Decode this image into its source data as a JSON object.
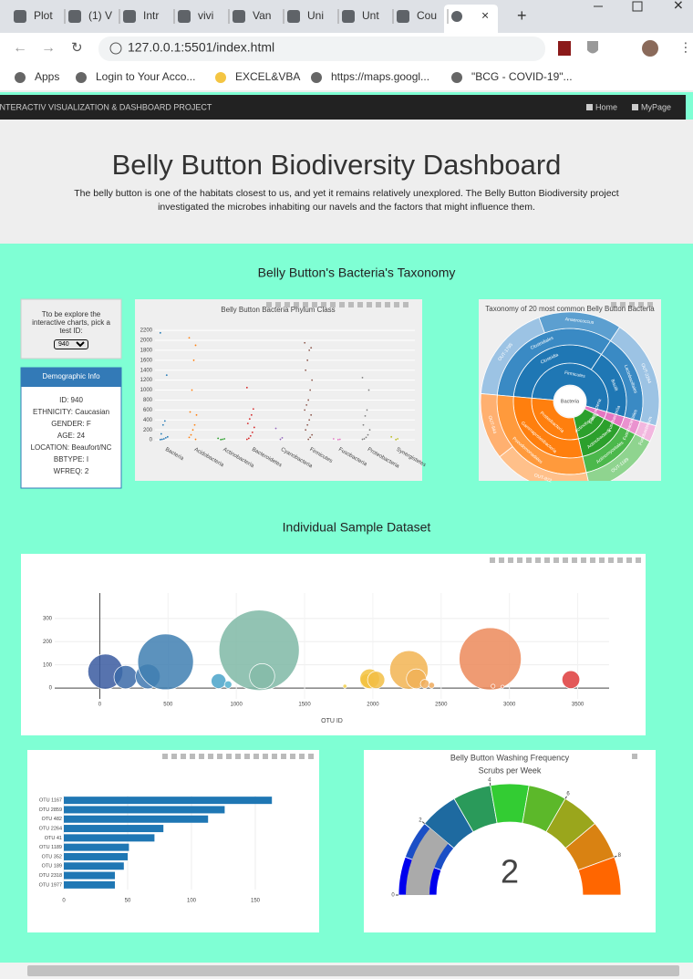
{
  "browser": {
    "tabs": [
      "Plot",
      "(1) V",
      "Intr",
      "vivi",
      "Van",
      "Uni",
      "Unt",
      "Cou"
    ],
    "url": "127.0.0.1:5501/index.html",
    "bookmarks": [
      "Apps",
      "Login to Your Acco...",
      "EXCEL&VBA",
      "https://maps.googl...",
      "\"BCG - COVID-19\"..."
    ]
  },
  "navbar": {
    "brand": "INTERACTIV VISUALIZATION & DASHBOARD PROJECT",
    "links": [
      "Home",
      "MyPage"
    ]
  },
  "header": {
    "title": "Belly Button Biodiversity Dashboard",
    "description": "The belly button is one of the habitats closest to us, and yet it remains relatively unexplored. The Belly Button Biodiversity project investigated the microbes inhabiting our navels and the factors that might influence them."
  },
  "taxonomy_section": {
    "title": "Belly Button's Bacteria's Taxonomy",
    "selector": {
      "prompt": "Tto be explore the interactive charts, pick a test ID:",
      "selected": "940"
    },
    "demographics": {
      "title": "Demographic Info",
      "lines": [
        "ID: 940",
        "ETHNICITY: Caucasian",
        "GENDER: F",
        "AGE: 24",
        "LOCATION: Beaufort/NC",
        "BBTYPE: I",
        "WFREQ: 2"
      ]
    },
    "box_chart": {
      "type": "box",
      "title": "Belly Button Bacteria Phylum Class",
      "categories": [
        "Bacteria",
        "Acidobacteria",
        "Actinobacteria",
        "Bacteroidetes",
        "Cyanobacteria",
        "Firmicutes",
        "Fusobacteria",
        "Proteobacteria",
        "Synergistetes"
      ],
      "colors": [
        "#1f77b4",
        "#ff7f0e",
        "#2ca02c",
        "#d62728",
        "#9467bd",
        "#8c564b",
        "#e377c2",
        "#7f7f7f",
        "#bcbd22"
      ],
      "values": [
        [
          2150,
          1300,
          380,
          300,
          120,
          60,
          40,
          20,
          10,
          5
        ],
        [
          2050,
          1900,
          1600,
          1000,
          560,
          500,
          300,
          200,
          100,
          50,
          10
        ],
        [
          30,
          20,
          10,
          5
        ],
        [
          1050,
          620,
          500,
          420,
          330,
          250,
          150,
          80,
          30,
          10
        ],
        [
          230,
          40,
          10
        ],
        [
          1950,
          1850,
          1800,
          1600,
          1400,
          1200,
          1000,
          800,
          700,
          600,
          500,
          400,
          300,
          200,
          100,
          50,
          10
        ],
        [
          20,
          10,
          5
        ],
        [
          1250,
          1000,
          600,
          480,
          300,
          200,
          100,
          50,
          20,
          10
        ],
        [
          60,
          20,
          5
        ]
      ],
      "ylim": [
        -90,
        2330
      ],
      "yticks": [
        0,
        200,
        400,
        600,
        800,
        1000,
        1200,
        1400,
        1600,
        1800,
        2000,
        2200
      ]
    },
    "sunburst": {
      "type": "sunburst",
      "title": "Taxonomy of 20 most common Belly Button Bacteria",
      "center": "Bacteria",
      "rings": [
        [
          {
            "label": "Firmicutes",
            "value": 53,
            "color": "#1f77b4"
          },
          {
            "label": "Fusobacteria",
            "value": 3,
            "color": "#e377c2"
          },
          {
            "label": "Actinobacteria",
            "value": 14,
            "color": "#2ca02c"
          },
          {
            "label": "Proteobacteria",
            "value": 30,
            "color": "#ff7f0e"
          }
        ],
        [
          {
            "label": "Clostridia",
            "value": 33,
            "color": "#1f77b4"
          },
          {
            "label": "Bacilli",
            "value": 20,
            "color": "#1f77b4"
          },
          {
            "label": "Fusobacteriia",
            "value": 3,
            "color": "#e377c2"
          },
          {
            "label": "Actinobacteria",
            "value": 14,
            "color": "#2ca02c"
          },
          {
            "label": "Gammaproteobacteria",
            "value": 30,
            "color": "#ff7f0e"
          }
        ],
        [
          {
            "label": "Clostridiales",
            "value": 33,
            "color": "#3a8ac4"
          },
          {
            "label": "Lactobacillales",
            "value": 20,
            "color": "#3a8ac4"
          },
          {
            "label": "Fusobacteriales",
            "value": 3,
            "color": "#ea92cf"
          },
          {
            "label": "Actinomycetales",
            "value": 14,
            "color": "#4cb84c"
          },
          {
            "label": "Pseudomonadales",
            "value": 30,
            "color": "#ff9a3c"
          }
        ],
        [
          {
            "label": "OUT-1795",
            "value": 18,
            "color": "#9cc3e4"
          },
          {
            "label": "Anaerococcus",
            "value": 15,
            "color": "#5c9fd0"
          },
          {
            "label": "OUT-2264",
            "value": 20,
            "color": "#9cc3e4"
          },
          {
            "label": "Fusobacterium",
            "value": 3,
            "color": "#f2b7df"
          },
          {
            "label": "OUT-1189",
            "value": 14,
            "color": "#8fd48f"
          },
          {
            "label": "OUT-922",
            "value": 18,
            "color": "#ffc08a"
          },
          {
            "label": "OUT-944",
            "value": 12,
            "color": "#ffb070"
          }
        ]
      ]
    }
  },
  "sample_section": {
    "title": "Individual Sample Dataset",
    "bubble_chart": {
      "type": "scatter",
      "x_label": "OTU ID",
      "x": [
        41,
        189,
        352,
        482,
        870,
        940,
        1167,
        1189,
        1795,
        1960,
        1977,
        2024,
        2264,
        2318,
        2380,
        2430,
        2859,
        2880,
        2950,
        3450
      ],
      "values": [
        71,
        47,
        50,
        113,
        30,
        15,
        163,
        51,
        8,
        30,
        40,
        35,
        78,
        40,
        18,
        12,
        126,
        8,
        6,
        36
      ],
      "sizes": [
        71,
        47,
        50,
        113,
        30,
        15,
        163,
        51,
        8,
        30,
        40,
        35,
        78,
        40,
        18,
        12,
        126,
        8,
        6,
        36
      ],
      "colors": [
        "#3a5aa0",
        "#3b6aa8",
        "#3f78b0",
        "#3f7fb2",
        "#4aa3c9",
        "#52b0cf",
        "#7fb8a6",
        "#85bba8",
        "#f2d04a",
        "#f3c23c",
        "#f2c241",
        "#f2be45",
        "#f2b452",
        "#f0b057",
        "#f0ad5a",
        "#efaa5c",
        "#ec8a5a",
        "#ec8a5a",
        "#e9805a",
        "#de3b3b"
      ],
      "xlim": [
        -330,
        3730
      ],
      "ylim": [
        -47,
        410
      ],
      "xticks": [
        0,
        500,
        1000,
        1500,
        2000,
        2500,
        3000,
        3500
      ],
      "yticks": [
        0,
        100,
        200,
        300
      ]
    },
    "bar_chart": {
      "type": "hbar",
      "categories": [
        "OTU 1167",
        "OTU 2859",
        "OTU 482",
        "OTU 2264",
        "OTU 41",
        "OTU 1189",
        "OTU 352",
        "OTU 189",
        "OTU 2318",
        "OTU 1977"
      ],
      "values": [
        163,
        126,
        113,
        78,
        71,
        51,
        50,
        47,
        40,
        40
      ],
      "color": "#1f77b4",
      "xlim": [
        0,
        170
      ],
      "xticks": [
        0,
        50,
        100,
        150
      ]
    },
    "gauge": {
      "type": "gauge",
      "title": "Belly Button Washing Frequency",
      "subtitle": "Scrubs per Week",
      "value": 2,
      "range": [
        0,
        9
      ],
      "ticks": [
        0,
        2,
        4,
        6,
        8
      ],
      "step_colors": [
        "#0000ee",
        "#1b4fc6",
        "#1e6aa0",
        "#2a9a5a",
        "#33cc33",
        "#5cb82a",
        "#9aa61c",
        "#d98212",
        "#ff6600"
      ],
      "bar_color": "#aaaaaa"
    }
  }
}
